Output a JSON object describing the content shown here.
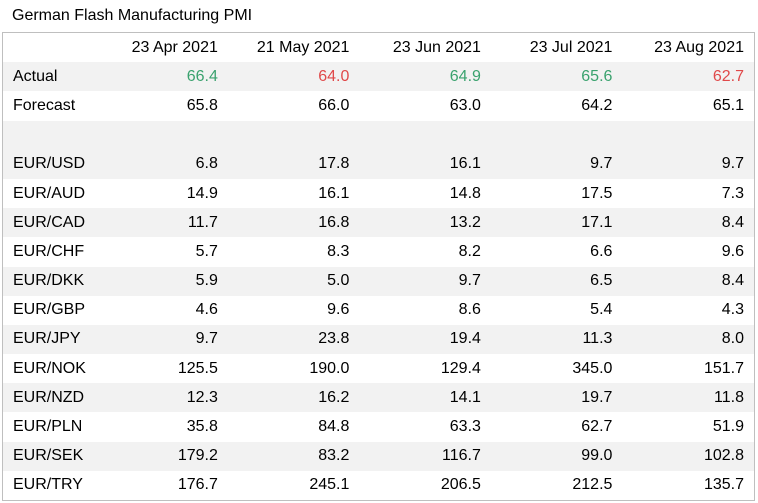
{
  "title": "German Flash Manufacturing PMI",
  "colors": {
    "beat": "#3aa26e",
    "miss": "#e0494a",
    "row_shade": "#f2f2f2"
  },
  "dates": [
    "23 Apr 2021",
    "21 May 2021",
    "23 Jun 2021",
    "23 Jul 2021",
    "23 Aug 2021"
  ],
  "actual": {
    "label": "Actual",
    "values": [
      "66.4",
      "64.0",
      "64.9",
      "65.6",
      "62.7"
    ],
    "status": [
      "beat",
      "miss",
      "beat",
      "beat",
      "miss"
    ]
  },
  "forecast": {
    "label": "Forecast",
    "values": [
      "65.8",
      "66.0",
      "63.0",
      "64.2",
      "65.1"
    ]
  },
  "pairs": [
    {
      "label": "EUR/USD",
      "values": [
        "6.8",
        "17.8",
        "16.1",
        "9.7",
        "9.7"
      ]
    },
    {
      "label": "EUR/AUD",
      "values": [
        "14.9",
        "16.1",
        "14.8",
        "17.5",
        "7.3"
      ]
    },
    {
      "label": "EUR/CAD",
      "values": [
        "11.7",
        "16.8",
        "13.2",
        "17.1",
        "8.4"
      ]
    },
    {
      "label": "EUR/CHF",
      "values": [
        "5.7",
        "8.3",
        "8.2",
        "6.6",
        "9.6"
      ]
    },
    {
      "label": "EUR/DKK",
      "values": [
        "5.9",
        "5.0",
        "9.7",
        "6.5",
        "8.4"
      ]
    },
    {
      "label": "EUR/GBP",
      "values": [
        "4.6",
        "9.6",
        "8.6",
        "5.4",
        "4.3"
      ]
    },
    {
      "label": "EUR/JPY",
      "values": [
        "9.7",
        "23.8",
        "19.4",
        "11.3",
        "8.0"
      ]
    },
    {
      "label": "EUR/NOK",
      "values": [
        "125.5",
        "190.0",
        "129.4",
        "345.0",
        "151.7"
      ]
    },
    {
      "label": "EUR/NZD",
      "values": [
        "12.3",
        "16.2",
        "14.1",
        "19.7",
        "11.8"
      ]
    },
    {
      "label": "EUR/PLN",
      "values": [
        "35.8",
        "84.8",
        "63.3",
        "62.7",
        "51.9"
      ]
    },
    {
      "label": "EUR/SEK",
      "values": [
        "179.2",
        "83.2",
        "116.7",
        "99.0",
        "102.8"
      ]
    },
    {
      "label": "EUR/TRY",
      "values": [
        "176.7",
        "245.1",
        "206.5",
        "212.5",
        "135.7"
      ]
    }
  ]
}
